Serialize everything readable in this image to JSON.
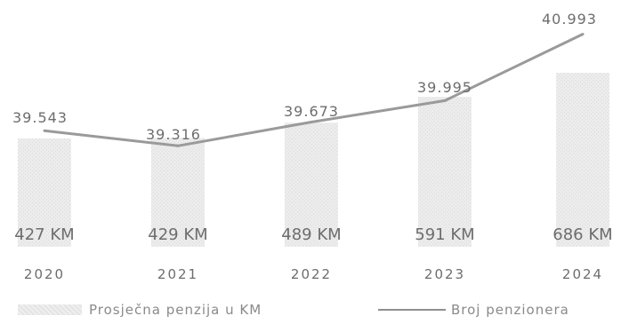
{
  "chart_data": {
    "type": "bar+line",
    "categories": [
      "2020",
      "2021",
      "2022",
      "2023",
      "2024"
    ],
    "series": [
      {
        "name": "Prosječna penzija u KM",
        "type": "bar",
        "values": [
          427,
          429,
          489,
          591,
          686
        ],
        "labels": [
          "427 KM",
          "429 KM",
          "489 KM",
          "591 KM",
          "686 KM"
        ]
      },
      {
        "name": "Broj penzionera",
        "type": "line",
        "values": [
          39543,
          39316,
          39673,
          39995,
          40993
        ],
        "labels": [
          "39.543",
          "39.316",
          "39.673",
          "39.995",
          "40.993"
        ]
      }
    ],
    "legend_position": "bottom",
    "grid": false,
    "colors": {
      "bar": "#e6e6e6",
      "line": "#9a9a9a",
      "text": "#6d6d6d"
    }
  }
}
